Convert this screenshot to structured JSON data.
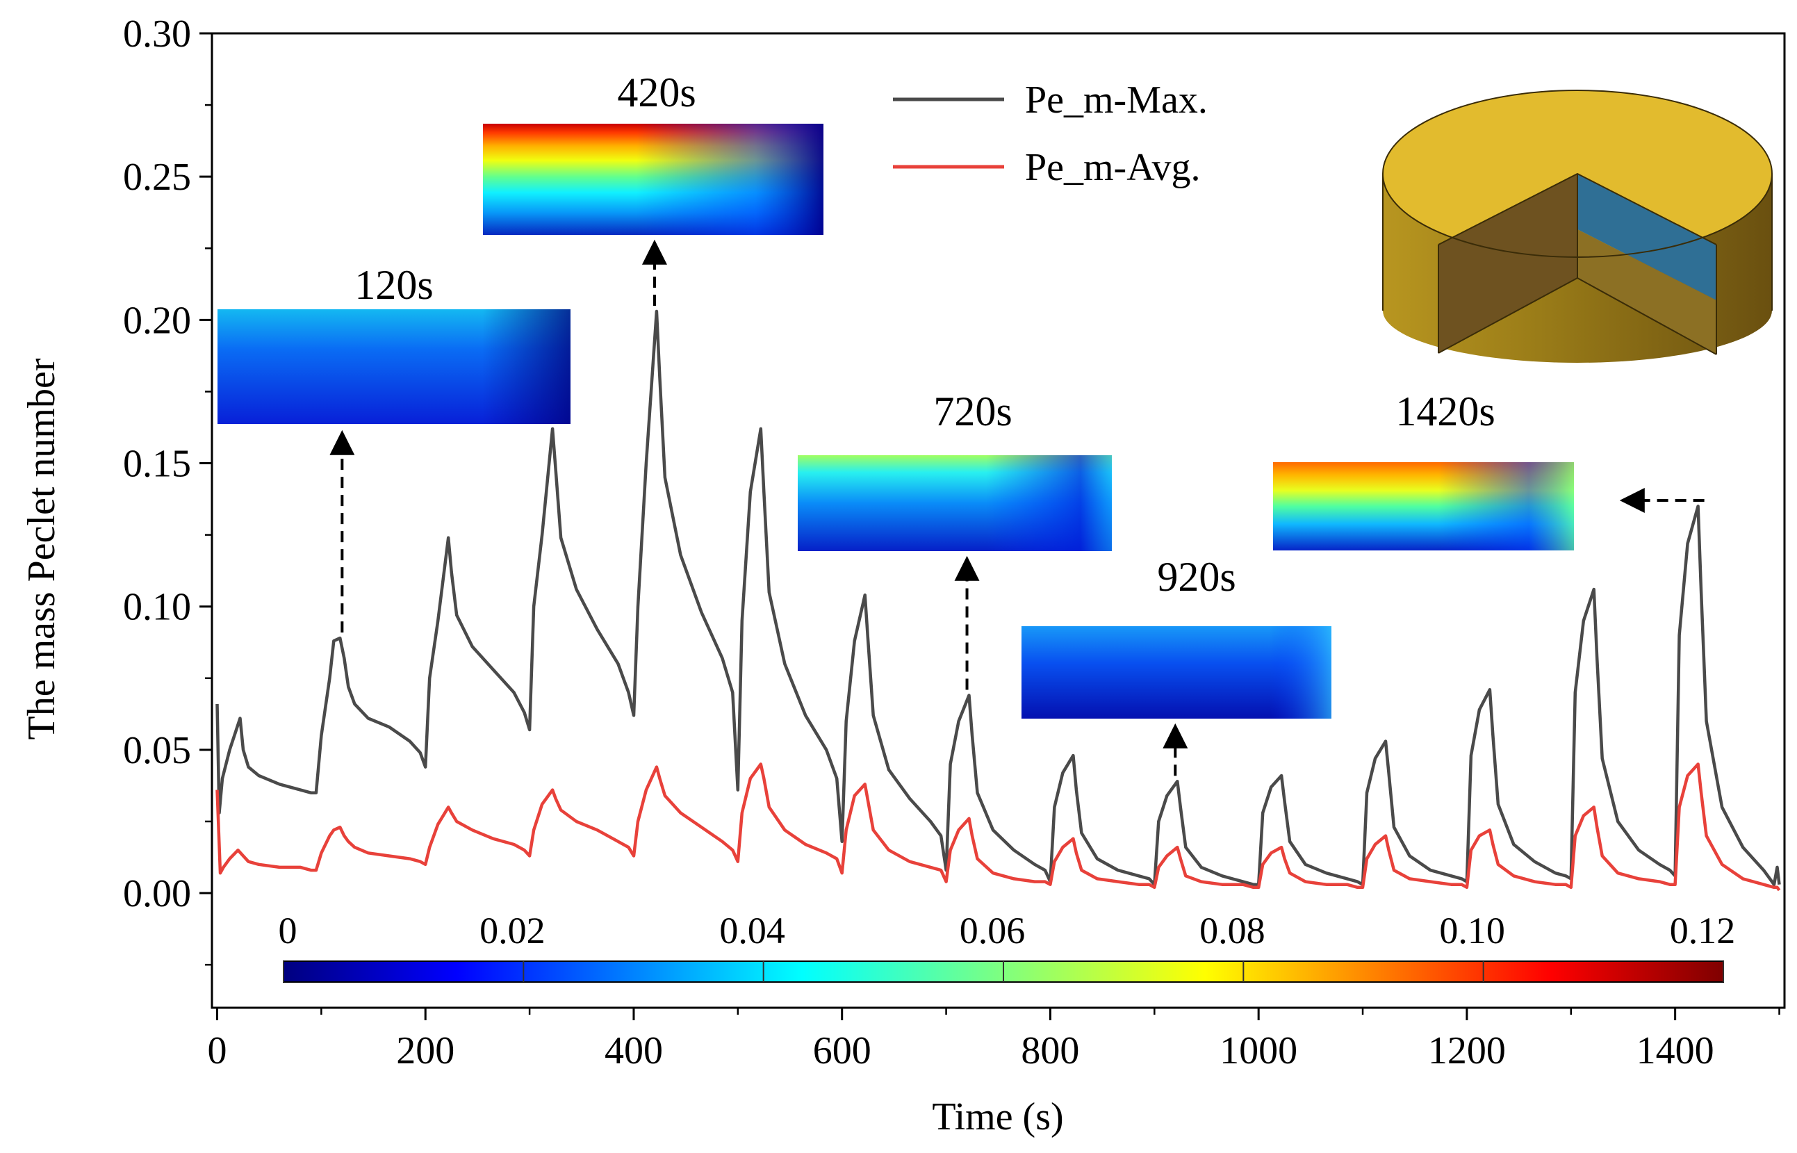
{
  "chart_data": {
    "type": "line",
    "title": "",
    "xlabel": "Time (s)",
    "ylabel": "The mass Peclet number",
    "xlim": [
      -5,
      1505
    ],
    "ylim": [
      -0.04,
      0.3
    ],
    "x_ticks": [
      0,
      200,
      400,
      600,
      800,
      1000,
      1200,
      1400
    ],
    "x_tick_labels": [
      "0",
      "200",
      "400",
      "600",
      "800",
      "1000",
      "1200",
      "1400"
    ],
    "y_ticks": [
      0.0,
      0.05,
      0.1,
      0.15,
      0.2,
      0.25,
      0.3
    ],
    "y_tick_labels": [
      "0.00",
      "0.05",
      "0.10",
      "0.15",
      "0.20",
      "0.25",
      "0.30"
    ],
    "legend": {
      "placement": "top-center"
    },
    "colors": {
      "max": "#4a4a4a",
      "avg": "#e8413a"
    },
    "series": [
      {
        "name": "Pe_m-Max.",
        "color": "#4a4a4a",
        "x": [
          0,
          2,
          5,
          12,
          22,
          25,
          30,
          40,
          60,
          80,
          90,
          95,
          100,
          108,
          112,
          118,
          122,
          126,
          132,
          145,
          165,
          185,
          195,
          200,
          204,
          212,
          222,
          225,
          230,
          245,
          265,
          285,
          295,
          300,
          304,
          312,
          322,
          325,
          330,
          345,
          365,
          385,
          395,
          400,
          404,
          412,
          422,
          425,
          430,
          445,
          465,
          485,
          495,
          500,
          504,
          512,
          522,
          525,
          530,
          545,
          565,
          585,
          595,
          600,
          604,
          612,
          622,
          625,
          630,
          645,
          665,
          685,
          695,
          700,
          704,
          712,
          722,
          725,
          730,
          745,
          765,
          785,
          795,
          800,
          804,
          812,
          822,
          825,
          830,
          845,
          865,
          885,
          895,
          900,
          904,
          912,
          922,
          925,
          930,
          945,
          965,
          985,
          995,
          1000,
          1004,
          1012,
          1022,
          1025,
          1030,
          1045,
          1065,
          1085,
          1095,
          1100,
          1104,
          1112,
          1122,
          1125,
          1130,
          1145,
          1165,
          1185,
          1195,
          1200,
          1204,
          1212,
          1222,
          1225,
          1230,
          1245,
          1265,
          1285,
          1295,
          1300,
          1304,
          1312,
          1322,
          1325,
          1330,
          1345,
          1365,
          1385,
          1395,
          1400,
          1404,
          1412,
          1422,
          1425,
          1430,
          1445,
          1465,
          1485,
          1495,
          1498,
          1500
        ],
        "y": [
          0.066,
          0.028,
          0.04,
          0.05,
          0.061,
          0.05,
          0.044,
          0.041,
          0.038,
          0.036,
          0.035,
          0.035,
          0.055,
          0.075,
          0.088,
          0.089,
          0.082,
          0.072,
          0.066,
          0.061,
          0.058,
          0.053,
          0.049,
          0.044,
          0.075,
          0.095,
          0.124,
          0.112,
          0.097,
          0.086,
          0.078,
          0.07,
          0.063,
          0.057,
          0.1,
          0.125,
          0.162,
          0.148,
          0.124,
          0.106,
          0.092,
          0.08,
          0.07,
          0.062,
          0.1,
          0.15,
          0.203,
          0.18,
          0.145,
          0.118,
          0.098,
          0.082,
          0.07,
          0.036,
          0.095,
          0.14,
          0.162,
          0.14,
          0.105,
          0.08,
          0.062,
          0.05,
          0.04,
          0.018,
          0.06,
          0.088,
          0.104,
          0.088,
          0.062,
          0.043,
          0.033,
          0.025,
          0.02,
          0.008,
          0.045,
          0.06,
          0.069,
          0.055,
          0.035,
          0.022,
          0.015,
          0.01,
          0.008,
          0.004,
          0.03,
          0.042,
          0.048,
          0.036,
          0.021,
          0.012,
          0.008,
          0.006,
          0.005,
          0.003,
          0.025,
          0.034,
          0.039,
          0.03,
          0.016,
          0.009,
          0.006,
          0.004,
          0.003,
          0.003,
          0.028,
          0.037,
          0.041,
          0.032,
          0.018,
          0.01,
          0.007,
          0.005,
          0.004,
          0.003,
          0.035,
          0.047,
          0.053,
          0.042,
          0.023,
          0.013,
          0.008,
          0.006,
          0.005,
          0.004,
          0.048,
          0.064,
          0.071,
          0.055,
          0.031,
          0.017,
          0.011,
          0.007,
          0.006,
          0.005,
          0.07,
          0.095,
          0.106,
          0.082,
          0.047,
          0.025,
          0.015,
          0.01,
          0.008,
          0.006,
          0.09,
          0.122,
          0.135,
          0.105,
          0.06,
          0.03,
          0.016,
          0.008,
          0.003,
          0.009,
          0.003
        ]
      },
      {
        "name": "Pe_m-Avg.",
        "color": "#e8413a",
        "x": [
          0,
          3,
          6,
          12,
          20,
          25,
          30,
          40,
          60,
          80,
          90,
          95,
          100,
          108,
          112,
          118,
          122,
          126,
          132,
          145,
          165,
          185,
          195,
          200,
          204,
          212,
          222,
          225,
          230,
          245,
          265,
          285,
          295,
          300,
          304,
          312,
          322,
          325,
          330,
          345,
          365,
          385,
          395,
          400,
          404,
          412,
          422,
          425,
          430,
          445,
          465,
          485,
          495,
          500,
          504,
          512,
          522,
          525,
          530,
          545,
          565,
          585,
          595,
          600,
          604,
          612,
          622,
          625,
          630,
          645,
          665,
          685,
          695,
          700,
          704,
          712,
          722,
          725,
          730,
          745,
          765,
          785,
          795,
          800,
          804,
          812,
          822,
          825,
          830,
          845,
          865,
          885,
          895,
          900,
          904,
          912,
          922,
          925,
          930,
          945,
          965,
          985,
          995,
          1000,
          1004,
          1012,
          1022,
          1025,
          1030,
          1045,
          1065,
          1085,
          1095,
          1100,
          1104,
          1112,
          1122,
          1125,
          1130,
          1145,
          1165,
          1185,
          1195,
          1200,
          1204,
          1212,
          1222,
          1225,
          1230,
          1245,
          1265,
          1285,
          1295,
          1300,
          1304,
          1312,
          1322,
          1325,
          1330,
          1345,
          1365,
          1385,
          1395,
          1400,
          1404,
          1412,
          1422,
          1425,
          1430,
          1445,
          1465,
          1485,
          1495,
          1498,
          1500
        ],
        "y": [
          0.036,
          0.007,
          0.009,
          0.012,
          0.015,
          0.013,
          0.011,
          0.01,
          0.009,
          0.009,
          0.008,
          0.008,
          0.014,
          0.02,
          0.022,
          0.023,
          0.02,
          0.018,
          0.016,
          0.014,
          0.013,
          0.012,
          0.011,
          0.01,
          0.016,
          0.024,
          0.03,
          0.028,
          0.025,
          0.022,
          0.019,
          0.017,
          0.015,
          0.013,
          0.022,
          0.031,
          0.036,
          0.033,
          0.029,
          0.025,
          0.022,
          0.018,
          0.016,
          0.013,
          0.025,
          0.036,
          0.044,
          0.04,
          0.034,
          0.028,
          0.023,
          0.018,
          0.015,
          0.011,
          0.028,
          0.04,
          0.045,
          0.04,
          0.03,
          0.022,
          0.017,
          0.014,
          0.012,
          0.007,
          0.022,
          0.034,
          0.038,
          0.032,
          0.022,
          0.015,
          0.011,
          0.009,
          0.008,
          0.004,
          0.015,
          0.022,
          0.026,
          0.02,
          0.012,
          0.007,
          0.005,
          0.004,
          0.004,
          0.003,
          0.011,
          0.016,
          0.019,
          0.014,
          0.008,
          0.005,
          0.004,
          0.003,
          0.003,
          0.002,
          0.009,
          0.013,
          0.016,
          0.012,
          0.006,
          0.004,
          0.003,
          0.003,
          0.002,
          0.002,
          0.01,
          0.014,
          0.016,
          0.012,
          0.007,
          0.004,
          0.003,
          0.003,
          0.002,
          0.002,
          0.012,
          0.017,
          0.02,
          0.015,
          0.008,
          0.005,
          0.004,
          0.003,
          0.003,
          0.002,
          0.015,
          0.02,
          0.022,
          0.017,
          0.01,
          0.006,
          0.004,
          0.003,
          0.003,
          0.002,
          0.02,
          0.027,
          0.03,
          0.023,
          0.013,
          0.007,
          0.005,
          0.004,
          0.003,
          0.003,
          0.03,
          0.041,
          0.045,
          0.035,
          0.02,
          0.01,
          0.005,
          0.003,
          0.002,
          0.002,
          0.001
        ]
      }
    ],
    "annotations": [
      {
        "label": "120s",
        "points_to": [
          120,
          0.089
        ],
        "arrow": "up"
      },
      {
        "label": "420s",
        "points_to": [
          420,
          0.203
        ],
        "arrow": "up"
      },
      {
        "label": "720s",
        "points_to": [
          720,
          0.069
        ],
        "arrow": "up"
      },
      {
        "label": "920s",
        "points_to": [
          920,
          0.039
        ],
        "arrow": "up"
      },
      {
        "label": "1420s",
        "points_to": [
          1420,
          0.135
        ],
        "arrow": "left"
      }
    ],
    "colorbar": {
      "ticks": [
        "0",
        "0.02",
        "0.04",
        "0.06",
        "0.08",
        "0.10",
        "0.12"
      ],
      "range": [
        0,
        0.12
      ],
      "colors": [
        "#00007f",
        "#0000ff",
        "#007fff",
        "#00ffff",
        "#7fff7f",
        "#ffff00",
        "#ff7f00",
        "#ff0000",
        "#7f0000"
      ]
    }
  }
}
